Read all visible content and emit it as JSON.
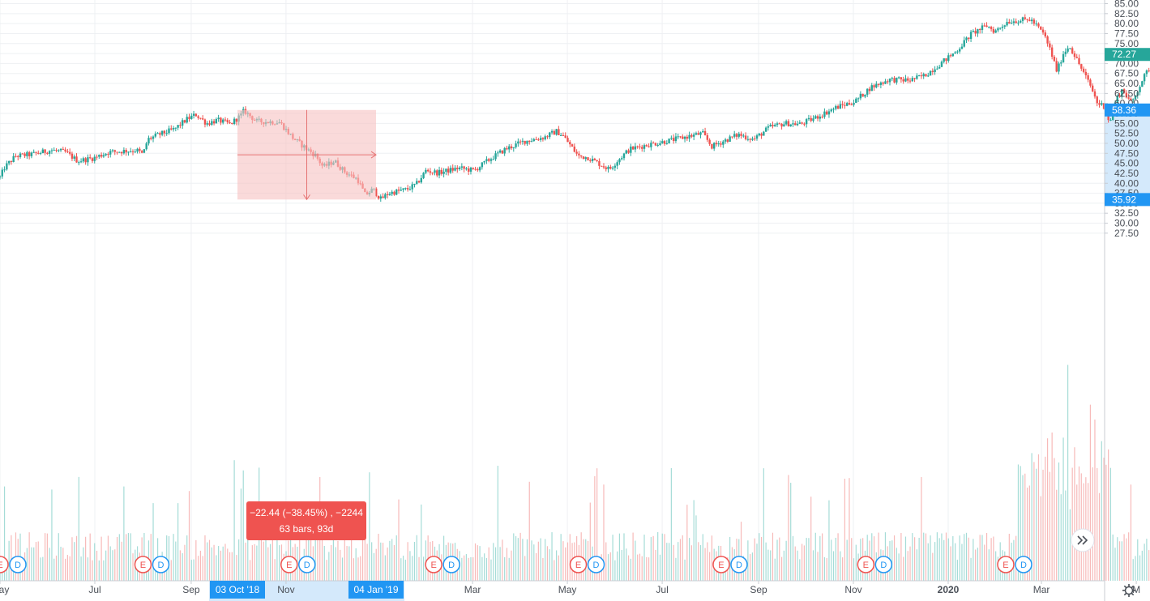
{
  "chart_data": {
    "type": "candlestick",
    "y_axis": {
      "range": [
        27.5,
        85.0
      ],
      "ticks": [
        "27.50",
        "30.00",
        "32.50",
        "35.00",
        "37.50",
        "40.00",
        "42.50",
        "45.00",
        "47.50",
        "50.00",
        "52.50",
        "55.00",
        "57.50",
        "60.00",
        "62.50",
        "65.00",
        "67.50",
        "70.00",
        "72.50",
        "75.00",
        "77.50",
        "80.00",
        "82.50",
        "85.00"
      ],
      "position": "right"
    },
    "x_axis": {
      "ticks": [
        {
          "label": "May",
          "day": 0
        },
        {
          "label": "Jul",
          "day": 61
        },
        {
          "label": "Sep",
          "day": 123
        },
        {
          "label": "Nov",
          "day": 184
        },
        {
          "label": "Mar",
          "day": 304
        },
        {
          "label": "May",
          "day": 365
        },
        {
          "label": "Jul",
          "day": 426
        },
        {
          "label": "Sep",
          "day": 488
        },
        {
          "label": "Nov",
          "day": 549
        },
        {
          "label": "2020",
          "day": 610
        },
        {
          "label": "Mar",
          "day": 670
        },
        {
          "label": "M",
          "day": 731
        }
      ],
      "highlight_start": "03 Oct '18",
      "highlight_end": "04 Jan '19"
    },
    "price_path": [
      {
        "day": 0,
        "price": 41.5
      },
      {
        "day": 3,
        "price": 44.0
      },
      {
        "day": 10,
        "price": 46.8
      },
      {
        "day": 20,
        "price": 47.2
      },
      {
        "day": 33,
        "price": 48.3
      },
      {
        "day": 42,
        "price": 47.8
      },
      {
        "day": 50,
        "price": 45.6
      },
      {
        "day": 60,
        "price": 46.3
      },
      {
        "day": 70,
        "price": 47.8
      },
      {
        "day": 88,
        "price": 48.3
      },
      {
        "day": 92,
        "price": 47.2
      },
      {
        "day": 95,
        "price": 51.0
      },
      {
        "day": 103,
        "price": 52.3
      },
      {
        "day": 112,
        "price": 53.5
      },
      {
        "day": 120,
        "price": 56.0
      },
      {
        "day": 126,
        "price": 57.2
      },
      {
        "day": 133,
        "price": 55.0
      },
      {
        "day": 140,
        "price": 55.8
      },
      {
        "day": 148,
        "price": 54.8
      },
      {
        "day": 155,
        "price": 57.0
      },
      {
        "day": 157,
        "price": 58.2
      },
      {
        "day": 165,
        "price": 55.5
      },
      {
        "day": 180,
        "price": 55.3
      },
      {
        "day": 188,
        "price": 51.5
      },
      {
        "day": 196,
        "price": 49.0
      },
      {
        "day": 203,
        "price": 47.0
      },
      {
        "day": 208,
        "price": 44.0
      },
      {
        "day": 215,
        "price": 45.6
      },
      {
        "day": 222,
        "price": 42.8
      },
      {
        "day": 230,
        "price": 41.0
      },
      {
        "day": 235,
        "price": 37.0
      },
      {
        "day": 240,
        "price": 38.5
      },
      {
        "day": 245,
        "price": 36.0
      },
      {
        "day": 250,
        "price": 37.5
      },
      {
        "day": 262,
        "price": 38.5
      },
      {
        "day": 268,
        "price": 39.8
      },
      {
        "day": 274,
        "price": 43.2
      },
      {
        "day": 282,
        "price": 42.6
      },
      {
        "day": 295,
        "price": 43.8
      },
      {
        "day": 305,
        "price": 43.2
      },
      {
        "day": 315,
        "price": 46.0
      },
      {
        "day": 325,
        "price": 48.5
      },
      {
        "day": 337,
        "price": 50.5
      },
      {
        "day": 350,
        "price": 51.5
      },
      {
        "day": 358,
        "price": 53.0
      },
      {
        "day": 362,
        "price": 52.0
      },
      {
        "day": 366,
        "price": 50.0
      },
      {
        "day": 372,
        "price": 46.8
      },
      {
        "day": 378,
        "price": 46.5
      },
      {
        "day": 385,
        "price": 45.0
      },
      {
        "day": 392,
        "price": 43.5
      },
      {
        "day": 398,
        "price": 46.0
      },
      {
        "day": 405,
        "price": 48.5
      },
      {
        "day": 415,
        "price": 49.5
      },
      {
        "day": 428,
        "price": 50.5
      },
      {
        "day": 440,
        "price": 51.5
      },
      {
        "day": 452,
        "price": 52.5
      },
      {
        "day": 458,
        "price": 49.2
      },
      {
        "day": 465,
        "price": 50.5
      },
      {
        "day": 475,
        "price": 52.2
      },
      {
        "day": 485,
        "price": 51.0
      },
      {
        "day": 495,
        "price": 54.0
      },
      {
        "day": 505,
        "price": 55.0
      },
      {
        "day": 515,
        "price": 54.8
      },
      {
        "day": 525,
        "price": 56.5
      },
      {
        "day": 538,
        "price": 59.0
      },
      {
        "day": 550,
        "price": 60.5
      },
      {
        "day": 560,
        "price": 64.0
      },
      {
        "day": 572,
        "price": 66.0
      },
      {
        "day": 585,
        "price": 65.8
      },
      {
        "day": 595,
        "price": 67.0
      },
      {
        "day": 605,
        "price": 70.0
      },
      {
        "day": 615,
        "price": 73.0
      },
      {
        "day": 625,
        "price": 77.5
      },
      {
        "day": 635,
        "price": 79.5
      },
      {
        "day": 640,
        "price": 78.0
      },
      {
        "day": 648,
        "price": 80.5
      },
      {
        "day": 655,
        "price": 80.8
      },
      {
        "day": 663,
        "price": 81.0
      },
      {
        "day": 668,
        "price": 79.0
      },
      {
        "day": 672,
        "price": 77.0
      },
      {
        "day": 676,
        "price": 73.0
      },
      {
        "day": 680,
        "price": 68.0
      },
      {
        "day": 684,
        "price": 72.5
      },
      {
        "day": 688,
        "price": 74.5
      },
      {
        "day": 694,
        "price": 70.0
      },
      {
        "day": 698,
        "price": 67.0
      },
      {
        "day": 702,
        "price": 64.0
      },
      {
        "day": 706,
        "price": 60.0
      },
      {
        "day": 710,
        "price": 59.5
      },
      {
        "day": 714,
        "price": 55.0
      },
      {
        "day": 718,
        "price": 61.0
      },
      {
        "day": 722,
        "price": 63.5
      },
      {
        "day": 728,
        "price": 60.0
      },
      {
        "day": 735,
        "price": 66.0
      },
      {
        "day": 742,
        "price": 70.5
      },
      {
        "day": 748,
        "price": 69.0
      },
      {
        "day": 755,
        "price": 71.0
      },
      {
        "day": 758,
        "price": 72.27
      }
    ],
    "current_price_label": "72.27",
    "measure_tool": {
      "start_price": 58.36,
      "end_price": 35.92,
      "start_day": 155,
      "end_day": 247,
      "start_price_label": "58.36",
      "end_price_label": "35.92",
      "line1": "−22.44 (−38.45%) , −2244",
      "line2": "63 bars, 93d"
    },
    "event_markers": [
      {
        "day": 0,
        "types": [
          "E",
          "D"
        ]
      },
      {
        "day": 92,
        "types": [
          "E",
          "D"
        ]
      },
      {
        "day": 186,
        "types": [
          "E",
          "D"
        ]
      },
      {
        "day": 279,
        "types": [
          "E",
          "D"
        ]
      },
      {
        "day": 372,
        "types": [
          "E",
          "D"
        ]
      },
      {
        "day": 464,
        "types": [
          "E",
          "D"
        ]
      },
      {
        "day": 557,
        "types": [
          "E",
          "D"
        ]
      },
      {
        "day": 647,
        "types": [
          "E",
          "D"
        ]
      },
      {
        "day": 739,
        "types": [
          "E"
        ]
      }
    ],
    "grid": true,
    "colors": {
      "up": "#26a69a",
      "down": "#ef5350",
      "measure_fill": "#f7c1c1",
      "measure_label": "#ef5350",
      "highlight": "#2196f3",
      "current_price": "#26a69a"
    }
  },
  "controls": {
    "scroll_icon": "double-chevron-right-icon",
    "settings_icon": "gear-icon"
  }
}
